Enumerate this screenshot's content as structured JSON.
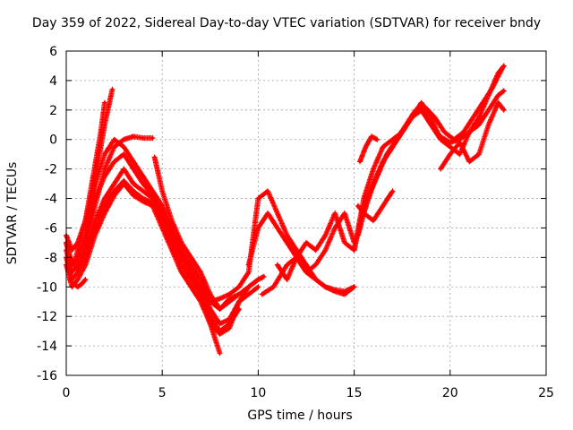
{
  "chart_data": {
    "type": "scatter",
    "title": "Day 359 of 2022, Sidereal Day-to-day VTEC variation (SDTVAR) for receiver bndy",
    "xlabel": "GPS time / hours",
    "ylabel": "SDTVAR / TECUs",
    "xlim": [
      0,
      25
    ],
    "ylim": [
      -16,
      6
    ],
    "xticks": [
      "0",
      "5",
      "10",
      "15",
      "20",
      "25"
    ],
    "yticks": [
      "-16",
      "-14",
      "-12",
      "-10",
      "-8",
      "-6",
      "-4",
      "-2",
      "0",
      "2",
      "4",
      "6"
    ],
    "grid": true,
    "marker": "+",
    "color": "#ff0000",
    "series": [
      {
        "name": "s1",
        "x": [
          0.0,
          0.3,
          0.6,
          1.0,
          1.5,
          2.0,
          2.5,
          3.0,
          3.5,
          4.0,
          4.5,
          5.0,
          5.5,
          6.0,
          6.5,
          7.0,
          7.5,
          8.0,
          8.5,
          9.0,
          9.5,
          10.0,
          10.3
        ],
        "y": [
          -7.5,
          -9.0,
          -8.5,
          -7.5,
          -5.5,
          -4.0,
          -3.0,
          -2.0,
          -3.0,
          -3.5,
          -4.0,
          -5.0,
          -6.5,
          -8.0,
          -9.0,
          -10.0,
          -11.5,
          -12.5,
          -12.2,
          -11.0,
          -10.0,
          -9.5,
          -9.3
        ]
      },
      {
        "name": "s2",
        "x": [
          0.0,
          0.3,
          0.6,
          1.0,
          1.5,
          2.0,
          2.5,
          3.0,
          3.5,
          4.0,
          4.5,
          5.0,
          5.5,
          6.0,
          6.5,
          7.0,
          7.5,
          8.0,
          8.5,
          9.0
        ],
        "y": [
          -8.0,
          -9.5,
          -9.0,
          -8.0,
          -6.0,
          -4.5,
          -3.5,
          -2.8,
          -3.5,
          -4.0,
          -4.3,
          -5.5,
          -7.0,
          -8.5,
          -9.5,
          -10.5,
          -12.0,
          -13.0,
          -12.5,
          -11.5
        ]
      },
      {
        "name": "s3",
        "x": [
          0.0,
          0.3,
          0.6,
          1.0,
          1.5,
          2.0,
          2.5,
          3.0,
          3.5,
          4.0,
          4.5,
          5.0,
          5.5,
          6.0,
          6.5,
          7.0,
          7.5,
          8.0,
          8.5,
          9.0,
          9.5,
          10.0
        ],
        "y": [
          -8.5,
          -10.0,
          -9.5,
          -8.5,
          -6.5,
          -5.0,
          -3.8,
          -3.0,
          -3.8,
          -4.2,
          -4.5,
          -6.0,
          -7.5,
          -9.0,
          -10.0,
          -11.0,
          -12.5,
          -13.2,
          -12.8,
          -11.0,
          -10.5,
          -10.0
        ]
      },
      {
        "name": "s4",
        "x": [
          0.0,
          0.3,
          0.6,
          1.0,
          1.5,
          2.0,
          2.5,
          3.0,
          3.5,
          4.0,
          4.5,
          5.0,
          5.5,
          6.0,
          6.5,
          7.0,
          7.5,
          8.0,
          8.5,
          9.0,
          9.5,
          10.0
        ],
        "y": [
          -7.0,
          -8.5,
          -8.0,
          -6.5,
          -4.0,
          -2.5,
          -1.5,
          -1.0,
          -2.0,
          -3.0,
          -3.8,
          -5.0,
          -6.5,
          -7.5,
          -8.5,
          -9.5,
          -11.0,
          -11.5,
          -10.8,
          -10.5,
          -10.0,
          -9.5
        ]
      },
      {
        "name": "s5",
        "x": [
          0.0,
          0.3,
          0.6,
          1.0,
          1.5,
          2.0,
          2.5,
          3.0,
          3.5,
          4.0,
          4.5,
          5.0,
          5.5,
          6.0,
          6.5,
          7.0,
          7.5,
          8.0
        ],
        "y": [
          -6.5,
          -7.5,
          -7.0,
          -5.5,
          -3.0,
          -1.0,
          0.0,
          -0.5,
          -1.5,
          -2.5,
          -3.5,
          -4.5,
          -6.0,
          -7.5,
          -9.0,
          -10.5,
          -12.5,
          -14.5
        ]
      },
      {
        "name": "s6",
        "x": [
          0.6,
          1.0,
          1.5,
          2.0,
          2.5,
          3.0,
          3.5,
          4.0,
          4.5
        ],
        "y": [
          -8.8,
          -7.0,
          -4.5,
          -2.0,
          -0.5,
          0.0,
          0.2,
          0.1,
          0.1
        ]
      },
      {
        "name": "s7",
        "x": [
          0.0,
          0.2,
          0.4,
          0.6,
          0.8,
          1.0,
          1.2,
          1.4,
          1.6,
          1.8,
          2.0
        ],
        "y": [
          -7.0,
          -8.0,
          -8.5,
          -7.5,
          -6.5,
          -5.5,
          -4.0,
          -2.5,
          -1.0,
          0.5,
          2.5
        ]
      },
      {
        "name": "s8",
        "x": [
          1.0,
          1.2,
          1.4,
          1.6,
          1.8,
          2.0,
          2.2,
          2.4
        ],
        "y": [
          -6.0,
          -5.0,
          -3.5,
          -2.0,
          -0.5,
          1.0,
          2.2,
          3.4
        ]
      },
      {
        "name": "s9",
        "x": [
          0.2,
          0.4,
          0.6,
          0.8,
          1.0
        ],
        "y": [
          -9.5,
          -9.8,
          -10.0,
          -9.8,
          -9.5
        ]
      },
      {
        "name": "s10",
        "x": [
          4.6,
          5.0,
          5.5,
          6.0,
          6.5,
          7.0,
          7.5,
          8.0,
          8.5,
          9.0
        ],
        "y": [
          -1.2,
          -3.5,
          -5.5,
          -7.0,
          -8.0,
          -9.0,
          -10.5,
          -11.5,
          -11.0,
          -10.5
        ]
      },
      {
        "name": "s11",
        "x": [
          7.0,
          7.5,
          8.0,
          8.5,
          9.0,
          9.5,
          10.0,
          10.5,
          11.0,
          11.5,
          12.0,
          12.5,
          13.0,
          13.5,
          14.0,
          14.5,
          15.0
        ],
        "y": [
          -10.5,
          -11.0,
          -10.8,
          -10.5,
          -10.0,
          -9.0,
          -4.0,
          -3.5,
          -5.0,
          -6.5,
          -7.5,
          -8.5,
          -9.5,
          -10.0,
          -10.3,
          -10.5,
          -10.0
        ]
      },
      {
        "name": "s12",
        "x": [
          9.5,
          10.0,
          10.5,
          11.0,
          11.5,
          12.0,
          12.5,
          13.0,
          13.5,
          14.0,
          14.5,
          15.0
        ],
        "y": [
          -8.5,
          -6.0,
          -5.0,
          -6.0,
          -7.0,
          -8.0,
          -9.0,
          -9.5,
          -10.0,
          -10.2,
          -10.3,
          -10.0
        ]
      },
      {
        "name": "s13",
        "x": [
          10.2,
          10.8,
          11.5,
          12.0,
          12.5,
          13.0,
          13.5,
          14.0,
          14.5,
          15.0
        ],
        "y": [
          -10.5,
          -10.0,
          -8.5,
          -8.0,
          -9.0,
          -8.5,
          -7.5,
          -6.0,
          -5.0,
          -7.0
        ]
      },
      {
        "name": "s14",
        "x": [
          11.0,
          11.5,
          12.0,
          12.5,
          13.0,
          13.5,
          14.0,
          14.5,
          15.0,
          15.5,
          16.0,
          16.5,
          17.0,
          17.5,
          18.0,
          18.5,
          19.0,
          19.5,
          20.0,
          20.5,
          21.0,
          21.5,
          22.0,
          22.5,
          22.8
        ],
        "y": [
          -8.5,
          -9.5,
          -8.0,
          -7.0,
          -7.5,
          -6.5,
          -5.0,
          -7.0,
          -7.5,
          -4.0,
          -2.0,
          -0.5,
          0.0,
          0.5,
          1.5,
          2.5,
          1.5,
          0.0,
          -0.2,
          0.0,
          0.5,
          1.0,
          2.0,
          3.0,
          3.3
        ]
      },
      {
        "name": "s15",
        "x": [
          15.0,
          15.5,
          16.0,
          16.5,
          17.0,
          17.5,
          18.0,
          18.5,
          19.0,
          19.5,
          20.0,
          20.5,
          21.0,
          21.5,
          22.0,
          22.5,
          22.8
        ],
        "y": [
          -7.5,
          -4.5,
          -3.0,
          -1.5,
          -0.5,
          0.5,
          1.5,
          2.0,
          1.0,
          0.0,
          -0.5,
          -1.0,
          0.5,
          1.5,
          3.0,
          4.5,
          5.0
        ]
      },
      {
        "name": "s16",
        "x": [
          15.2,
          15.7,
          16.2,
          16.7,
          17.2,
          17.7,
          18.2,
          18.7,
          19.2,
          19.7,
          20.2,
          20.7,
          21.2,
          21.7,
          22.2,
          22.7
        ],
        "y": [
          -6.5,
          -4.0,
          -2.5,
          -1.0,
          0.0,
          1.0,
          2.0,
          2.2,
          1.5,
          0.5,
          0.0,
          0.5,
          1.5,
          2.5,
          3.5,
          4.8
        ]
      },
      {
        "name": "s17",
        "x": [
          15.5,
          16.0,
          16.5,
          17.0,
          17.5,
          18.0,
          18.5,
          19.0,
          19.5,
          20.0
        ],
        "y": [
          -5.0,
          -3.0,
          -1.5,
          -0.5,
          0.5,
          1.5,
          2.0,
          1.0,
          0.2,
          -0.2
        ]
      },
      {
        "name": "s18",
        "x": [
          15.2,
          15.5,
          16.0,
          16.5,
          17.0
        ],
        "y": [
          -4.5,
          -5.0,
          -5.5,
          -4.5,
          -3.5
        ]
      },
      {
        "name": "s19",
        "x": [
          15.3,
          15.6,
          15.9,
          16.2
        ],
        "y": [
          -1.5,
          -0.5,
          0.2,
          0.0
        ]
      },
      {
        "name": "s20",
        "x": [
          19.5,
          20.0,
          20.5,
          21.0,
          21.5,
          22.0,
          22.5,
          22.8
        ],
        "y": [
          -2.0,
          -1.0,
          -0.2,
          -1.5,
          -1.0,
          1.0,
          2.5,
          2.0
        ]
      }
    ]
  }
}
